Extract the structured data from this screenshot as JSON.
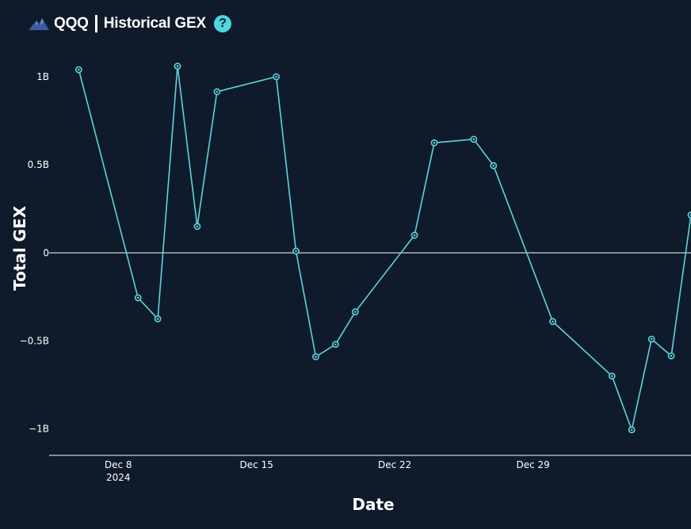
{
  "header": {
    "ticker": "QQQ",
    "title": "Historical GEX",
    "help_label": "?",
    "logo_icon": "mountain-logo-icon"
  },
  "colors": {
    "background": "#0f1b2a",
    "line": "#5fd3dc",
    "axis": "#ffffff",
    "zero_line": "#ffffff"
  },
  "chart_data": {
    "type": "line",
    "title": "",
    "xlabel": "Date",
    "ylabel": "Total GEX",
    "ylim": [
      -1150000000,
      1130000000
    ],
    "xlim": [
      "2024-12-04T12:00",
      "2025-01-06T00:00"
    ],
    "grid": false,
    "zero_line": true,
    "yticks": [
      {
        "value": 1000000000,
        "label": "1B"
      },
      {
        "value": 500000000,
        "label": "0.5B"
      },
      {
        "value": 0,
        "label": "0"
      },
      {
        "value": -500000000,
        "label": "−0.5B"
      },
      {
        "value": -1000000000,
        "label": "−1B"
      }
    ],
    "xticks": [
      {
        "value": "2024-12-08",
        "label": "Dec 8",
        "sublabel": "2024"
      },
      {
        "value": "2024-12-15",
        "label": "Dec 15",
        "sublabel": ""
      },
      {
        "value": "2024-12-22",
        "label": "Dec 22",
        "sublabel": ""
      },
      {
        "value": "2024-12-29",
        "label": "Dec 29",
        "sublabel": ""
      }
    ],
    "series": [
      {
        "x": [
          "2024-12-06",
          "2024-12-09",
          "2024-12-10",
          "2024-12-11",
          "2024-12-12",
          "2024-12-13",
          "2024-12-16",
          "2024-12-17",
          "2024-12-18",
          "2024-12-19",
          "2024-12-20",
          "2024-12-23",
          "2024-12-24",
          "2024-12-26",
          "2024-12-27",
          "2024-12-30",
          "2025-01-02",
          "2025-01-03",
          "2025-01-04",
          "2025-01-05",
          "2025-01-06"
        ],
        "y": [
          1040000000,
          -255000000,
          -375000000,
          1060000000,
          150000000,
          915000000,
          1000000000,
          10000000,
          -590000000,
          -520000000,
          -335000000,
          100000000,
          625000000,
          645000000,
          495000000,
          -390000000,
          -700000000,
          -1005000000,
          -490000000,
          -585000000,
          215000000
        ]
      }
    ]
  }
}
